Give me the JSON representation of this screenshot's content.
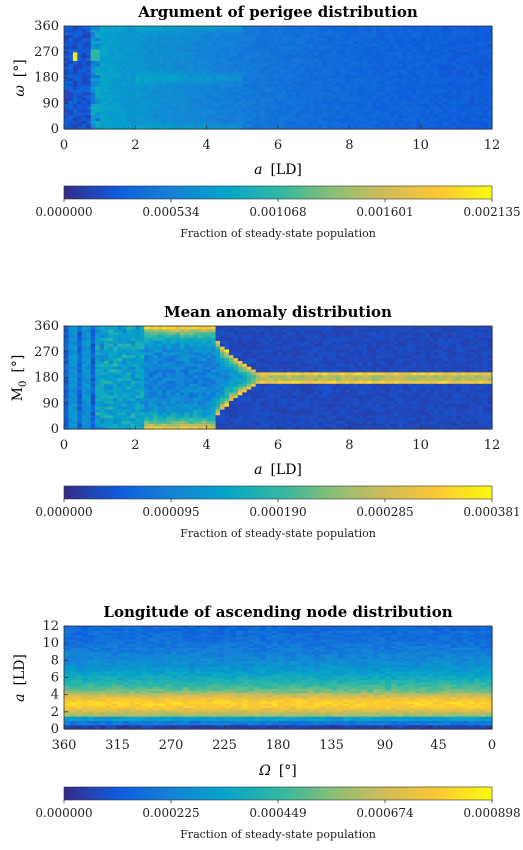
{
  "chart_data": [
    {
      "type": "heatmap",
      "title": "Argument of perigee distribution",
      "xlabel_var": "a",
      "xlabel_unit": "[LD]",
      "ylabel_var": "ω",
      "ylabel_unit": "[°]",
      "xlim": [
        0,
        12
      ],
      "ylim": [
        0,
        360
      ],
      "xticks": [
        "0",
        "2",
        "4",
        "6",
        "8",
        "10",
        "12"
      ],
      "yticks": [
        "0",
        "90",
        "180",
        "270",
        "360"
      ],
      "colorbar_ticks": [
        "0.000000",
        "0.000534",
        "0.001068",
        "0.001601",
        "0.002135"
      ],
      "colorbar_label": "Fraction of steady-state population",
      "colorbar_range": [
        0,
        0.002135
      ],
      "colormap": "parula"
    },
    {
      "type": "heatmap",
      "title": "Mean anomaly distribution",
      "xlabel_var": "a",
      "xlabel_unit": "[LD]",
      "ylabel_var": "M",
      "ylabel_sub": "0",
      "ylabel_unit": "[°]",
      "xlim": [
        0,
        12
      ],
      "ylim": [
        0,
        360
      ],
      "xticks": [
        "0",
        "2",
        "4",
        "6",
        "8",
        "10",
        "12"
      ],
      "yticks": [
        "0",
        "90",
        "180",
        "270",
        "360"
      ],
      "colorbar_ticks": [
        "0.000000",
        "0.000095",
        "0.000190",
        "0.000285",
        "0.000381"
      ],
      "colorbar_label": "Fraction of steady-state population",
      "colorbar_range": [
        0,
        0.000381
      ],
      "colormap": "parula"
    },
    {
      "type": "heatmap",
      "title": "Longitude of ascending node distribution",
      "xlabel_var": "Ω",
      "xlabel_unit": "[°]",
      "ylabel_var": "a",
      "ylabel_unit": "[LD]",
      "xlim": [
        360,
        0
      ],
      "ylim": [
        0,
        12
      ],
      "xticks": [
        "360",
        "315",
        "270",
        "225",
        "180",
        "135",
        "90",
        "45",
        "0"
      ],
      "yticks": [
        "0",
        "2",
        "4",
        "6",
        "8",
        "10",
        "12"
      ],
      "colorbar_ticks": [
        "0.000000",
        "0.000225",
        "0.000449",
        "0.000674",
        "0.000898"
      ],
      "colorbar_label": "Fraction of steady-state population",
      "colorbar_range": [
        0,
        0.000898
      ],
      "colormap": "parula"
    }
  ]
}
